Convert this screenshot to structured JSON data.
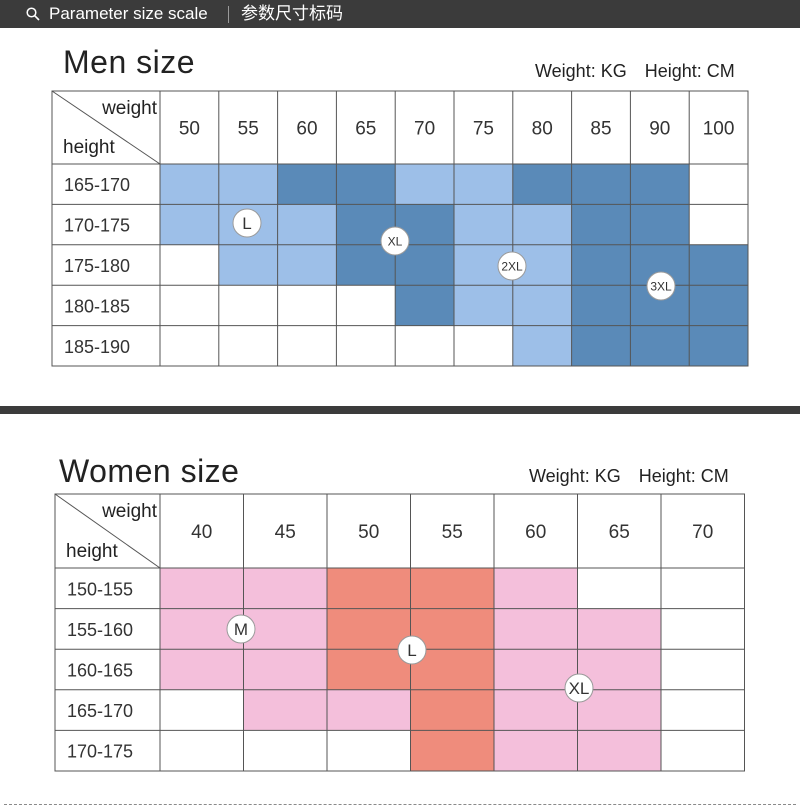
{
  "topbar": {
    "search_icon": "search-icon",
    "title_en": "Parameter size scale",
    "title_cn": "参数尺寸标码"
  },
  "men": {
    "title": "Men size",
    "units": {
      "weight": "Weight: KG",
      "height": "Height: CM"
    },
    "corner": {
      "weight": "weight",
      "height": "height"
    },
    "weights": [
      "50",
      "55",
      "60",
      "65",
      "70",
      "75",
      "80",
      "85",
      "90",
      "100"
    ],
    "heights": [
      "165-170",
      "170-175",
      "175-180",
      "180-185",
      "185-190"
    ],
    "colors": {
      "light": "#9dbfe8",
      "dark": "#5a8ab8"
    },
    "cells": [
      [
        "L",
        "L",
        "D",
        "D",
        "L",
        "L",
        "D",
        "D",
        "D",
        ""
      ],
      [
        "L",
        "L",
        "L",
        "D",
        "D",
        "L",
        "L",
        "D",
        "D",
        ""
      ],
      [
        "",
        "L",
        "L",
        "D",
        "D",
        "L",
        "L",
        "D",
        "D",
        "D"
      ],
      [
        "",
        "",
        "",
        "",
        "D",
        "L",
        "L",
        "D",
        "D",
        "D"
      ],
      [
        "",
        "",
        "",
        "",
        "",
        "",
        "L",
        "D",
        "D",
        "D"
      ]
    ],
    "badges": [
      "L",
      "XL",
      "2XL",
      "3XL"
    ]
  },
  "women": {
    "title": "Women size",
    "units": {
      "weight": "Weight: KG",
      "height": "Height: CM"
    },
    "corner": {
      "weight": "weight",
      "height": "height"
    },
    "weights": [
      "40",
      "45",
      "50",
      "55",
      "60",
      "65",
      "70"
    ],
    "heights": [
      "150-155",
      "155-160",
      "160-165",
      "165-170",
      "170-175"
    ],
    "colors": {
      "light": "#f4bfdb",
      "dark": "#ef8c7c"
    },
    "cells": [
      [
        "L",
        "L",
        "D",
        "D",
        "L",
        "",
        ""
      ],
      [
        "L",
        "L",
        "D",
        "D",
        "L",
        "L",
        ""
      ],
      [
        "L",
        "L",
        "D",
        "D",
        "L",
        "L",
        ""
      ],
      [
        "",
        "L",
        "L",
        "D",
        "L",
        "L",
        ""
      ],
      [
        "",
        "",
        "",
        "D",
        "L",
        "L",
        ""
      ]
    ],
    "badges": [
      "M",
      "L",
      "XL"
    ]
  }
}
